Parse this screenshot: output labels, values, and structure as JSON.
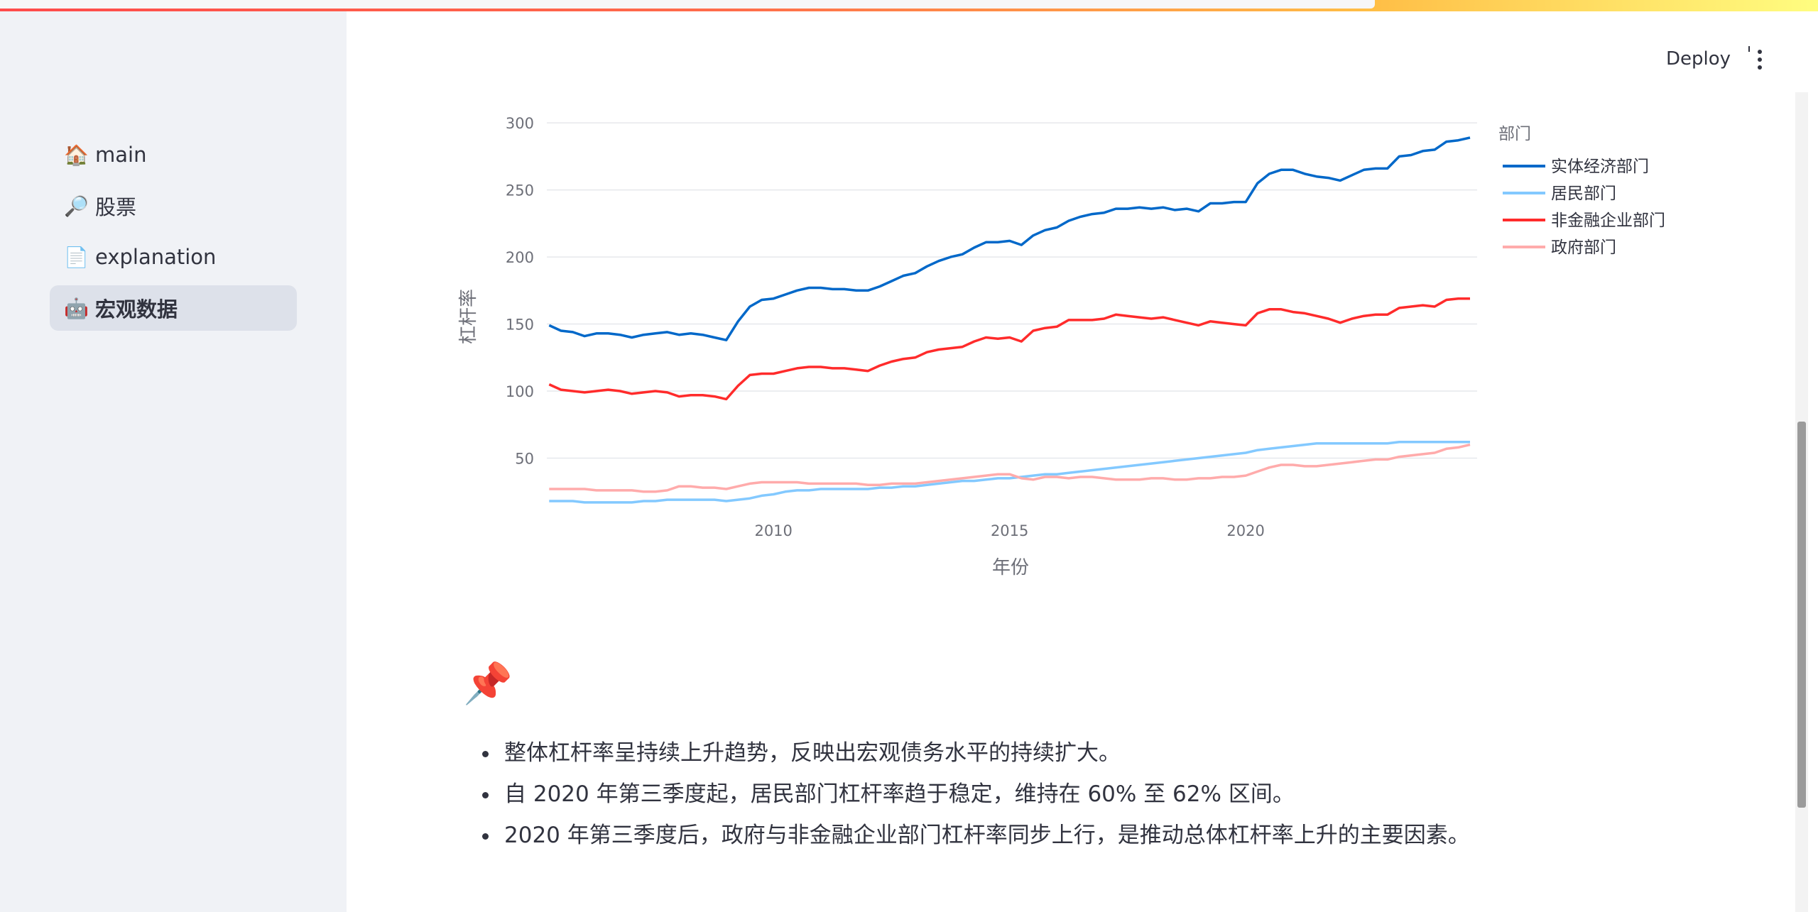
{
  "header": {
    "deploy_label": "Deploy"
  },
  "sidebar": {
    "items": [
      {
        "label": "main",
        "icon": "house-icon",
        "glyph": "🏠",
        "active": false
      },
      {
        "label": "股票",
        "icon": "magnifier-icon",
        "glyph": "🔎",
        "active": false
      },
      {
        "label": "explanation",
        "icon": "page-icon",
        "glyph": "📄",
        "active": false
      },
      {
        "label": "宏观数据",
        "icon": "robot-icon",
        "glyph": "🤖",
        "active": true
      }
    ]
  },
  "chart_data": {
    "type": "line",
    "xlabel": "年份",
    "ylabel": "杠杆率",
    "legend_title": "部门",
    "legend_position": "right",
    "grid": true,
    "xlim": [
      2005.2,
      2024.9
    ],
    "ylim": [
      0,
      308
    ],
    "x_ticks": [
      2010,
      2015,
      2020
    ],
    "y_ticks": [
      50,
      100,
      150,
      200,
      250,
      300
    ],
    "x": [
      2005.25,
      2005.5,
      2005.75,
      2006,
      2006.25,
      2006.5,
      2006.75,
      2007,
      2007.25,
      2007.5,
      2007.75,
      2008,
      2008.25,
      2008.5,
      2008.75,
      2009,
      2009.25,
      2009.5,
      2009.75,
      2010,
      2010.25,
      2010.5,
      2010.75,
      2011,
      2011.25,
      2011.5,
      2011.75,
      2012,
      2012.25,
      2012.5,
      2012.75,
      2013,
      2013.25,
      2013.5,
      2013.75,
      2014,
      2014.25,
      2014.5,
      2014.75,
      2015,
      2015.25,
      2015.5,
      2015.75,
      2016,
      2016.25,
      2016.5,
      2016.75,
      2017,
      2017.25,
      2017.5,
      2017.75,
      2018,
      2018.25,
      2018.5,
      2018.75,
      2019,
      2019.25,
      2019.5,
      2019.75,
      2020,
      2020.25,
      2020.5,
      2020.75,
      2021,
      2021.25,
      2021.5,
      2021.75,
      2022,
      2022.25,
      2022.5,
      2022.75,
      2023,
      2023.25,
      2023.5,
      2023.75,
      2024,
      2024.25,
      2024.5,
      2024.75
    ],
    "series": [
      {
        "name": "实体经济部门",
        "color": "#0068c9",
        "values": [
          149,
          145,
          144,
          141,
          143,
          143,
          142,
          140,
          142,
          143,
          144,
          142,
          143,
          142,
          140,
          138,
          152,
          163,
          168,
          169,
          172,
          175,
          177,
          177,
          176,
          176,
          175,
          175,
          178,
          182,
          186,
          188,
          193,
          197,
          200,
          202,
          207,
          211,
          211,
          212,
          209,
          216,
          220,
          222,
          227,
          230,
          232,
          233,
          236,
          236,
          237,
          236,
          237,
          235,
          236,
          234,
          240,
          240,
          241,
          241,
          255,
          262,
          265,
          265,
          262,
          260,
          259,
          257,
          261,
          265,
          266,
          266,
          275,
          276,
          279,
          280,
          286,
          287,
          289
        ]
      },
      {
        "name": "居民部门",
        "color": "#83c9ff",
        "values": [
          18,
          18,
          18,
          17,
          17,
          17,
          17,
          17,
          18,
          18,
          19,
          19,
          19,
          19,
          19,
          18,
          19,
          20,
          22,
          23,
          25,
          26,
          26,
          27,
          27,
          27,
          27,
          27,
          28,
          28,
          29,
          29,
          30,
          31,
          32,
          33,
          33,
          34,
          35,
          35,
          36,
          37,
          38,
          38,
          39,
          40,
          41,
          42,
          43,
          44,
          45,
          46,
          47,
          48,
          49,
          50,
          51,
          52,
          53,
          54,
          56,
          57,
          58,
          59,
          60,
          61,
          61,
          61,
          61,
          61,
          61,
          61,
          62,
          62,
          62,
          62,
          62,
          62,
          62
        ]
      },
      {
        "name": "非金融企业部门",
        "color": "#ff2b2b",
        "values": [
          105,
          101,
          100,
          99,
          100,
          101,
          100,
          98,
          99,
          100,
          99,
          96,
          97,
          97,
          96,
          94,
          104,
          112,
          113,
          113,
          115,
          117,
          118,
          118,
          117,
          117,
          116,
          115,
          119,
          122,
          124,
          125,
          129,
          131,
          132,
          133,
          137,
          140,
          139,
          140,
          137,
          145,
          147,
          148,
          153,
          153,
          153,
          154,
          157,
          156,
          155,
          154,
          155,
          153,
          151,
          149,
          152,
          151,
          150,
          149,
          158,
          161,
          161,
          159,
          158,
          156,
          154,
          151,
          154,
          156,
          157,
          157,
          162,
          163,
          164,
          163,
          168,
          169,
          169
        ]
      },
      {
        "name": "政府部门",
        "color": "#ffabab",
        "values": [
          27,
          27,
          27,
          27,
          26,
          26,
          26,
          26,
          25,
          25,
          26,
          29,
          29,
          28,
          28,
          27,
          29,
          31,
          32,
          32,
          32,
          32,
          31,
          31,
          31,
          31,
          31,
          30,
          30,
          31,
          31,
          31,
          32,
          33,
          34,
          35,
          36,
          37,
          38,
          38,
          35,
          34,
          36,
          36,
          35,
          36,
          36,
          35,
          34,
          34,
          34,
          35,
          35,
          34,
          34,
          35,
          35,
          36,
          36,
          37,
          40,
          43,
          45,
          45,
          44,
          44,
          45,
          46,
          47,
          48,
          49,
          49,
          51,
          52,
          53,
          54,
          57,
          58,
          60
        ]
      }
    ]
  },
  "pin_icon": "pushpin-icon",
  "pin_glyph": "📌",
  "notes": [
    "整体杠杆率呈持续上升趋势，反映出宏观债务水平的持续扩大。",
    "自 2020 年第三季度起，居民部门杠杆率趋于稳定，维持在 60% 至 62% 区间。",
    "2020 年第三季度后，政府与非金融企业部门杠杆率同步上行，是推动总体杠杆率上升的主要因素。"
  ]
}
